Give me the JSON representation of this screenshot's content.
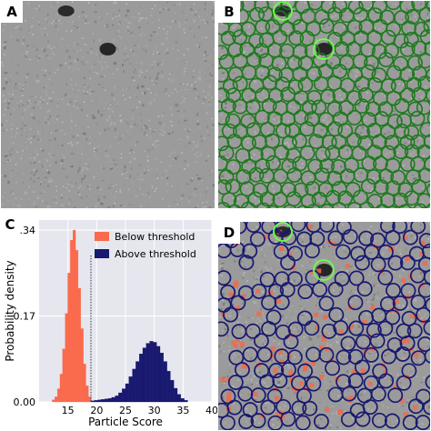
{
  "panels": {
    "a": {
      "label": "A"
    },
    "b": {
      "label": "B"
    },
    "c": {
      "label": "C"
    },
    "d": {
      "label": "D"
    }
  },
  "colors": {
    "micrograph_bg": "#9b9b9b",
    "good_particle": "#1e7a1e",
    "ice_contaminant": "#6bff4a",
    "above_threshold": "#191970",
    "below_threshold": "#fa6a4c",
    "rejected_marker": "#f06a4a",
    "plot_bg": "#e6e6ef"
  },
  "icons": {
    "particle_marker": "circle-outline-icon",
    "contaminant_marker": "circle-outline-icon"
  },
  "chart_data": {
    "type": "histogram",
    "xlabel": "Particle Score",
    "ylabel": "Probability density",
    "xlim": [
      10,
      40
    ],
    "ylim": [
      0,
      0.36
    ],
    "xticks": [
      "15",
      "20",
      "25",
      "30",
      "35",
      "40"
    ],
    "yticks": [
      "0.00",
      "0.17",
      "0.34"
    ],
    "threshold": 19,
    "grid": true,
    "legend_position": "top-right",
    "series": [
      {
        "name": "Below threshold",
        "color": "#fa6a4c",
        "bin_width": 0.45,
        "bins": [
          {
            "x": 12.5,
            "y": 0.004
          },
          {
            "x": 12.95,
            "y": 0.01
          },
          {
            "x": 13.4,
            "y": 0.026
          },
          {
            "x": 13.85,
            "y": 0.055
          },
          {
            "x": 14.3,
            "y": 0.105
          },
          {
            "x": 14.75,
            "y": 0.175
          },
          {
            "x": 15.2,
            "y": 0.255
          },
          {
            "x": 15.65,
            "y": 0.32
          },
          {
            "x": 16.1,
            "y": 0.34
          },
          {
            "x": 16.55,
            "y": 0.3
          },
          {
            "x": 17.0,
            "y": 0.225
          },
          {
            "x": 17.45,
            "y": 0.145
          },
          {
            "x": 17.9,
            "y": 0.075
          },
          {
            "x": 18.35,
            "y": 0.032
          },
          {
            "x": 18.8,
            "y": 0.01
          }
        ]
      },
      {
        "name": "Above threshold",
        "color": "#191970",
        "bin_width": 0.6,
        "bins": [
          {
            "x": 19.3,
            "y": 0.002
          },
          {
            "x": 19.9,
            "y": 0.003
          },
          {
            "x": 20.5,
            "y": 0.004
          },
          {
            "x": 21.1,
            "y": 0.005
          },
          {
            "x": 21.7,
            "y": 0.006
          },
          {
            "x": 22.3,
            "y": 0.007
          },
          {
            "x": 22.9,
            "y": 0.009
          },
          {
            "x": 23.5,
            "y": 0.012
          },
          {
            "x": 24.1,
            "y": 0.018
          },
          {
            "x": 24.7,
            "y": 0.026
          },
          {
            "x": 25.3,
            "y": 0.036
          },
          {
            "x": 25.9,
            "y": 0.05
          },
          {
            "x": 26.5,
            "y": 0.065
          },
          {
            "x": 27.1,
            "y": 0.08
          },
          {
            "x": 27.7,
            "y": 0.095
          },
          {
            "x": 28.3,
            "y": 0.107
          },
          {
            "x": 28.9,
            "y": 0.116
          },
          {
            "x": 29.5,
            "y": 0.12
          },
          {
            "x": 30.1,
            "y": 0.118
          },
          {
            "x": 30.7,
            "y": 0.11
          },
          {
            "x": 31.3,
            "y": 0.097
          },
          {
            "x": 31.9,
            "y": 0.08
          },
          {
            "x": 32.5,
            "y": 0.061
          },
          {
            "x": 33.1,
            "y": 0.043
          },
          {
            "x": 33.7,
            "y": 0.027
          },
          {
            "x": 34.3,
            "y": 0.015
          },
          {
            "x": 34.9,
            "y": 0.007
          },
          {
            "x": 35.5,
            "y": 0.003
          }
        ]
      }
    ]
  }
}
